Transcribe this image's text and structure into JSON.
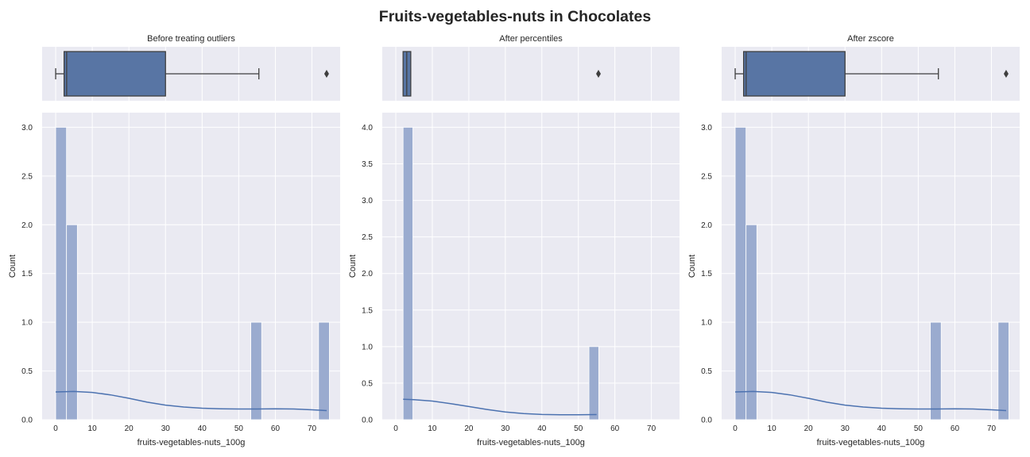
{
  "figure": {
    "suptitle": "Fruits-vegetables-nuts in Chocolates"
  },
  "colors": {
    "axes_bg": "#eaeaf2",
    "grid": "#ffffff",
    "box_fill": "#5875a4",
    "box_edge": "#3f3f3f",
    "hist_fill": "#9aabcf",
    "kde_line": "#4c72b0",
    "text": "#262626"
  },
  "chart_data": [
    {
      "type": "histogram",
      "title": "Before treating outliers",
      "xlabel": "fruits-vegetables-nuts_100g",
      "ylabel": "Count",
      "xlim": [
        -3.7,
        77.7
      ],
      "xticks": [
        0,
        10,
        20,
        30,
        40,
        50,
        60,
        70
      ],
      "ylim": [
        0,
        3.15
      ],
      "yticks": [
        "0.0",
        "0.5",
        "1.0",
        "1.5",
        "2.0",
        "2.5",
        "3.0"
      ],
      "grid": true,
      "boxplot": {
        "min": 0,
        "q1": 2.3,
        "median": 3.0,
        "q3": 30,
        "whisker_high": 55.5,
        "outliers": [
          74
        ]
      },
      "bins": [
        {
          "x0": 0,
          "x1": 2.96,
          "count": 3
        },
        {
          "x0": 2.96,
          "x1": 5.92,
          "count": 2
        },
        {
          "x0": 53.3,
          "x1": 56.26,
          "count": 1
        },
        {
          "x0": 71.8,
          "x1": 74.76,
          "count": 1
        }
      ],
      "kde": [
        [
          0,
          0.285
        ],
        [
          5,
          0.29
        ],
        [
          10,
          0.28
        ],
        [
          15,
          0.255
        ],
        [
          20,
          0.22
        ],
        [
          25,
          0.18
        ],
        [
          30,
          0.15
        ],
        [
          35,
          0.13
        ],
        [
          40,
          0.118
        ],
        [
          45,
          0.112
        ],
        [
          50,
          0.11
        ],
        [
          55,
          0.11
        ],
        [
          60,
          0.112
        ],
        [
          65,
          0.11
        ],
        [
          70,
          0.102
        ],
        [
          74,
          0.094
        ]
      ]
    },
    {
      "type": "histogram",
      "title": "After percentiles",
      "xlabel": "fruits-vegetables-nuts_100g",
      "ylabel": "Count",
      "xlim": [
        -3.7,
        77.7
      ],
      "xticks": [
        0,
        10,
        20,
        30,
        40,
        50,
        60,
        70
      ],
      "ylim": [
        0,
        4.2
      ],
      "yticks": [
        "0.0",
        "0.5",
        "1.0",
        "1.5",
        "2.0",
        "2.5",
        "3.0",
        "3.5",
        "4.0"
      ],
      "grid": true,
      "boxplot": {
        "min": 2.0,
        "q1": 2.0,
        "median": 3.0,
        "q3": 4.1,
        "whisker_high": 4.1,
        "outliers": [
          55.5
        ]
      },
      "bins": [
        {
          "x0": 2.0,
          "x1": 4.68,
          "count": 4
        },
        {
          "x0": 52.9,
          "x1": 55.58,
          "count": 1
        }
      ],
      "kde": [
        [
          2,
          0.28
        ],
        [
          5,
          0.275
        ],
        [
          10,
          0.255
        ],
        [
          15,
          0.22
        ],
        [
          20,
          0.18
        ],
        [
          25,
          0.14
        ],
        [
          30,
          0.105
        ],
        [
          35,
          0.085
        ],
        [
          40,
          0.072
        ],
        [
          45,
          0.068
        ],
        [
          50,
          0.068
        ],
        [
          55,
          0.07
        ]
      ]
    },
    {
      "type": "histogram",
      "title": "After zscore",
      "xlabel": "fruits-vegetables-nuts_100g",
      "ylabel": "Count",
      "xlim": [
        -3.7,
        77.7
      ],
      "xticks": [
        0,
        10,
        20,
        30,
        40,
        50,
        60,
        70
      ],
      "ylim": [
        0,
        3.15
      ],
      "yticks": [
        "0.0",
        "0.5",
        "1.0",
        "1.5",
        "2.0",
        "2.5",
        "3.0"
      ],
      "grid": true,
      "boxplot": {
        "min": 0,
        "q1": 2.3,
        "median": 3.0,
        "q3": 30,
        "whisker_high": 55.5,
        "outliers": [
          74
        ]
      },
      "bins": [
        {
          "x0": 0,
          "x1": 2.96,
          "count": 3
        },
        {
          "x0": 2.96,
          "x1": 5.92,
          "count": 2
        },
        {
          "x0": 53.3,
          "x1": 56.26,
          "count": 1
        },
        {
          "x0": 71.8,
          "x1": 74.76,
          "count": 1
        }
      ],
      "kde": [
        [
          0,
          0.285
        ],
        [
          5,
          0.29
        ],
        [
          10,
          0.28
        ],
        [
          15,
          0.255
        ],
        [
          20,
          0.22
        ],
        [
          25,
          0.18
        ],
        [
          30,
          0.15
        ],
        [
          35,
          0.13
        ],
        [
          40,
          0.118
        ],
        [
          45,
          0.112
        ],
        [
          50,
          0.11
        ],
        [
          55,
          0.11
        ],
        [
          60,
          0.112
        ],
        [
          65,
          0.11
        ],
        [
          70,
          0.102
        ],
        [
          74,
          0.094
        ]
      ]
    }
  ]
}
